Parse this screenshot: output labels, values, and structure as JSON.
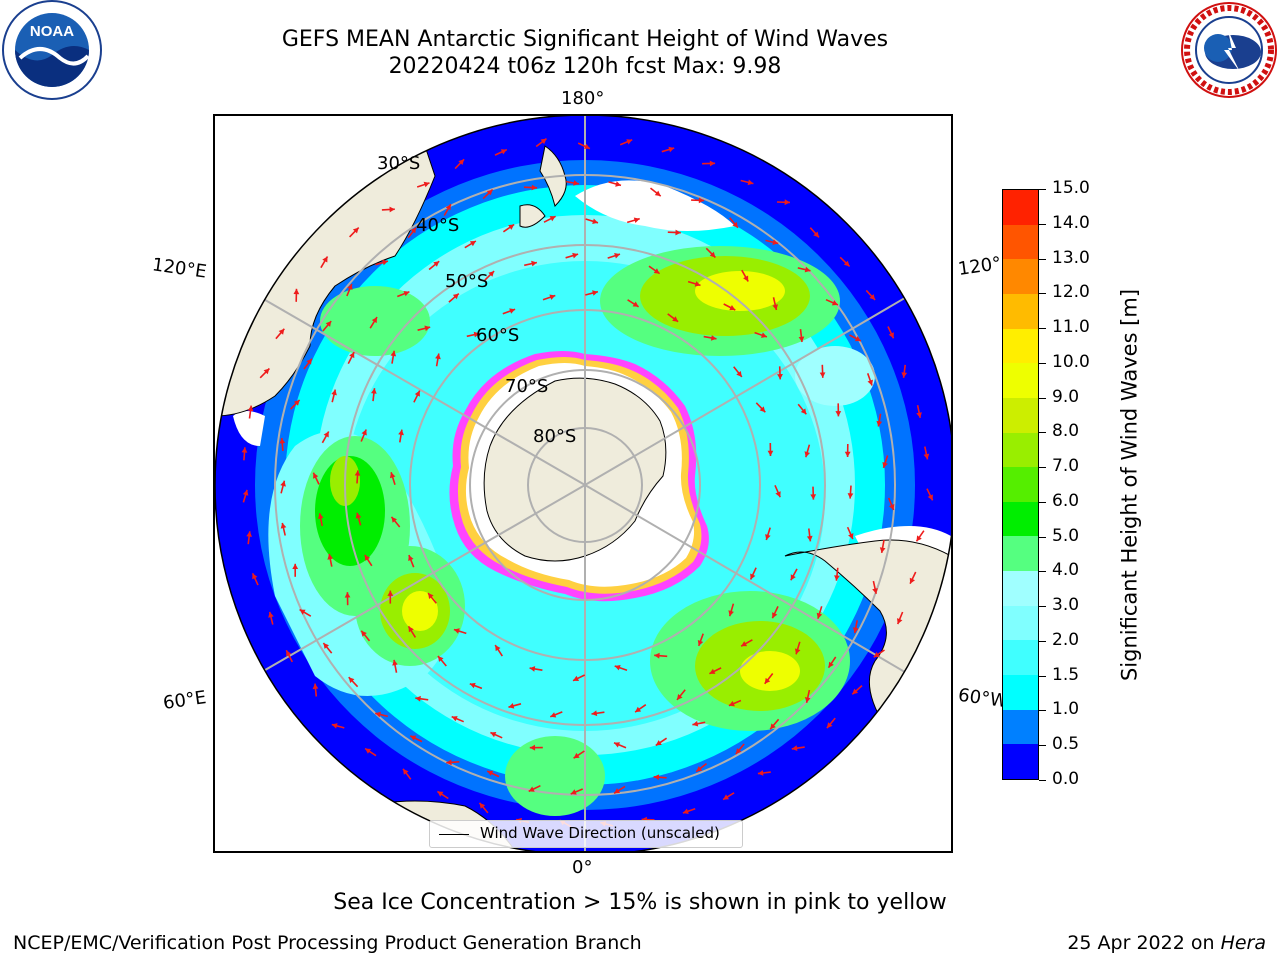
{
  "header": {
    "title_line1": "GEFS MEAN Antarctic Significant Height of Wind Waves",
    "title_line2": "20220424 t06z 120h fcst   Max: 9.98"
  },
  "map": {
    "projection": "south-polar-stereographic",
    "longitude_labels": {
      "top": "180°",
      "bottom": "0°",
      "upper_left": "120°E",
      "lower_left": "60°E",
      "upper_right": "120°",
      "lower_right": "60°W"
    },
    "latitude_labels": [
      "30°S",
      "40°S",
      "50°S",
      "60°S",
      "70°S",
      "80°S"
    ],
    "legend_label": "Wind Wave Direction (unscaled)",
    "land_color": "#efecdc",
    "ice_colors": [
      "#ff44ff",
      "#ffd040"
    ],
    "arrow_color": "#ee1c1c"
  },
  "colorbar": {
    "label": "Significant Height of Wind Waves [m]",
    "ticks": [
      "0.0",
      "0.5",
      "1.0",
      "1.5",
      "2.0",
      "3.0",
      "4.0",
      "5.0",
      "6.0",
      "7.0",
      "8.0",
      "9.0",
      "10.0",
      "11.0",
      "12.0",
      "13.0",
      "14.0",
      "15.0"
    ],
    "colors": [
      "#0000ff",
      "#0080ff",
      "#00ffff",
      "#40ffff",
      "#80ffff",
      "#a0ffff",
      "#55ff80",
      "#00ee00",
      "#55ee00",
      "#99ee00",
      "#ccee00",
      "#eeff00",
      "#ffee00",
      "#ffbb00",
      "#ff8800",
      "#ff5500",
      "#ff2200"
    ]
  },
  "footer": {
    "note": "Sea Ice Concentration > 15% is shown in pink to yellow",
    "left": "NCEP/EMC/Verification Post Processing Product Generation Branch",
    "right_date": "25 Apr 2022 on ",
    "right_machine": "Hera"
  },
  "logos": {
    "noaa_text": "NOAA",
    "nws_text": "NATIONAL WEATHER SERVICE"
  }
}
